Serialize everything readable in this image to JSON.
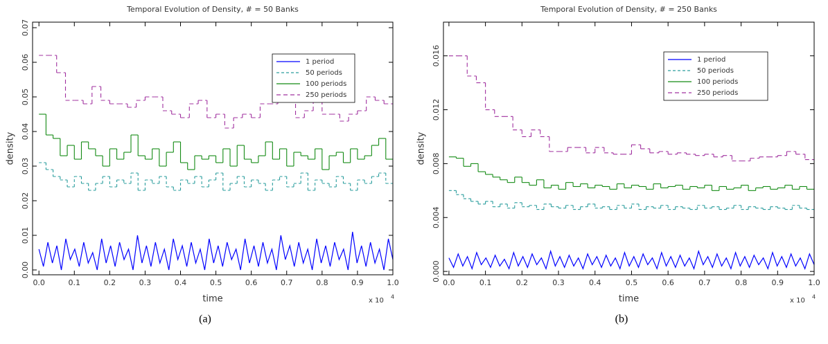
{
  "chart_data": [
    {
      "type": "line",
      "drawstyle": "steps",
      "title": "Temporal Evolution of Density, # = 50 Banks",
      "x_label": "time",
      "y_label": "density",
      "x_multiplier": "x 10",
      "x_multiplier_exp": "4",
      "caption": "(a)",
      "xlim": [
        -0.018,
        1.0
      ],
      "ylim": [
        -0.0014,
        0.0716
      ],
      "xticks": [
        {
          "value": 0,
          "label": "0.0"
        },
        {
          "value": 0.1,
          "label": "0.1"
        },
        {
          "value": 0.2,
          "label": "0.2"
        },
        {
          "value": 0.3,
          "label": "0.3"
        },
        {
          "value": 0.4,
          "label": "0.4"
        },
        {
          "value": 0.5,
          "label": "0.5"
        },
        {
          "value": 0.6,
          "label": "0.6"
        },
        {
          "value": 0.7,
          "label": "0.7"
        },
        {
          "value": 0.8,
          "label": "0.8"
        },
        {
          "value": 0.9,
          "label": "0.9"
        },
        {
          "value": 1,
          "label": "1.0"
        }
      ],
      "yticks": [
        {
          "value": 0,
          "label": "0.00"
        },
        {
          "value": 0.01,
          "label": "0.01"
        },
        {
          "value": 0.02,
          "label": "0.02"
        },
        {
          "value": 0.03,
          "label": "0.03"
        },
        {
          "value": 0.04,
          "label": "0.04"
        },
        {
          "value": 0.05,
          "label": "0.05"
        },
        {
          "value": 0.06,
          "label": "0.06"
        },
        {
          "value": 0.07,
          "label": "0.07"
        }
      ],
      "series": [
        {
          "name": "1 period",
          "color": "#0000ff",
          "dash": "none",
          "values": [
            0.006,
            0.001,
            0.008,
            0.002,
            0.007,
            0.0,
            0.009,
            0.003,
            0.006,
            0.001,
            0.008,
            0.002,
            0.005,
            0.0,
            0.009,
            0.002,
            0.007,
            0.001,
            0.008,
            0.003,
            0.006,
            0.0,
            0.01,
            0.002,
            0.007,
            0.001,
            0.008,
            0.002,
            0.006,
            0.0,
            0.009,
            0.003,
            0.007,
            0.001,
            0.008,
            0.002,
            0.006,
            0.0,
            0.009,
            0.002,
            0.007,
            0.001,
            0.008,
            0.003,
            0.006,
            0.0,
            0.009,
            0.002,
            0.007,
            0.001,
            0.008,
            0.002,
            0.006,
            0.0,
            0.01,
            0.003,
            0.007,
            0.001,
            0.008,
            0.002,
            0.006,
            0.0,
            0.009,
            0.002,
            0.007,
            0.001,
            0.008,
            0.003,
            0.006,
            0.0,
            0.011,
            0.002,
            0.007,
            0.001,
            0.008,
            0.002,
            0.006,
            0.0,
            0.009,
            0.003
          ]
        },
        {
          "name": "50 periods",
          "color": "#2a9d9d",
          "dash": "4,3",
          "values": [
            0.031,
            0.029,
            0.027,
            0.026,
            0.024,
            0.027,
            0.025,
            0.023,
            0.025,
            0.027,
            0.024,
            0.026,
            0.025,
            0.028,
            0.023,
            0.026,
            0.025,
            0.027,
            0.024,
            0.023,
            0.026,
            0.025,
            0.027,
            0.024,
            0.026,
            0.028,
            0.023,
            0.025,
            0.027,
            0.024,
            0.026,
            0.025,
            0.023,
            0.026,
            0.027,
            0.024,
            0.025,
            0.028,
            0.023,
            0.026,
            0.025,
            0.024,
            0.027,
            0.025,
            0.023,
            0.026,
            0.025,
            0.027,
            0.028,
            0.025
          ]
        },
        {
          "name": "100 periods",
          "color": "#138a13",
          "dash": "none",
          "values": [
            0.045,
            0.039,
            0.038,
            0.033,
            0.036,
            0.032,
            0.037,
            0.035,
            0.033,
            0.03,
            0.035,
            0.032,
            0.034,
            0.039,
            0.033,
            0.032,
            0.035,
            0.03,
            0.034,
            0.037,
            0.031,
            0.029,
            0.033,
            0.032,
            0.033,
            0.031,
            0.035,
            0.03,
            0.036,
            0.032,
            0.031,
            0.033,
            0.037,
            0.032,
            0.035,
            0.03,
            0.034,
            0.033,
            0.032,
            0.035,
            0.029,
            0.033,
            0.034,
            0.031,
            0.035,
            0.032,
            0.033,
            0.036,
            0.038,
            0.032
          ]
        },
        {
          "name": "250 periods",
          "color": "#a0309f",
          "dash": "6,4",
          "values": [
            0.062,
            0.062,
            0.057,
            0.049,
            0.049,
            0.048,
            0.053,
            0.049,
            0.048,
            0.048,
            0.047,
            0.049,
            0.05,
            0.05,
            0.046,
            0.045,
            0.044,
            0.048,
            0.049,
            0.044,
            0.045,
            0.041,
            0.044,
            0.045,
            0.044,
            0.048,
            0.048,
            0.049,
            0.05,
            0.044,
            0.046,
            0.049,
            0.045,
            0.045,
            0.043,
            0.045,
            0.046,
            0.05,
            0.049,
            0.048
          ]
        }
      ]
    },
    {
      "type": "line",
      "drawstyle": "steps",
      "title": "Temporal Evolution of Density, # = 250 Banks",
      "x_label": "time",
      "y_label": "density",
      "x_multiplier": "x 10",
      "x_multiplier_exp": "4",
      "caption": "(b)",
      "xlim": [
        -0.015,
        1.0
      ],
      "ylim": [
        -0.00025,
        0.0185
      ],
      "xticks": [
        {
          "value": 0,
          "label": "0.0"
        },
        {
          "value": 0.1,
          "label": "0.1"
        },
        {
          "value": 0.2,
          "label": "0.2"
        },
        {
          "value": 0.3,
          "label": "0.3"
        },
        {
          "value": 0.4,
          "label": "0.4"
        },
        {
          "value": 0.5,
          "label": "0.5"
        },
        {
          "value": 0.6,
          "label": "0.6"
        },
        {
          "value": 0.7,
          "label": "0.7"
        },
        {
          "value": 0.8,
          "label": "0.8"
        },
        {
          "value": 0.9,
          "label": "0.9"
        },
        {
          "value": 1,
          "label": "1.0"
        }
      ],
      "yticks": [
        {
          "value": 0,
          "label": "0.000"
        },
        {
          "value": 0.004,
          "label": "0.004"
        },
        {
          "value": 0.008,
          "label": "0.008"
        },
        {
          "value": 0.012,
          "label": "0.012"
        },
        {
          "value": 0.016,
          "label": "0.016"
        }
      ],
      "series": [
        {
          "name": "1 period",
          "color": "#0000ff",
          "dash": "none",
          "values": [
            0.001,
            0.0003,
            0.0013,
            0.0004,
            0.0011,
            0.0002,
            0.0014,
            0.0005,
            0.001,
            0.0003,
            0.0012,
            0.0004,
            0.0009,
            0.0002,
            0.0014,
            0.0004,
            0.0011,
            0.0003,
            0.0013,
            0.0005,
            0.001,
            0.0002,
            0.0015,
            0.0004,
            0.0011,
            0.0003,
            0.0012,
            0.0004,
            0.001,
            0.0002,
            0.0013,
            0.0005,
            0.0011,
            0.0003,
            0.0012,
            0.0004,
            0.001,
            0.0002,
            0.0014,
            0.0004,
            0.0011,
            0.0003,
            0.0013,
            0.0005,
            0.001,
            0.0002,
            0.0014,
            0.0004,
            0.0011,
            0.0003,
            0.0012,
            0.0004,
            0.001,
            0.0002,
            0.0015,
            0.0005,
            0.0011,
            0.0003,
            0.0013,
            0.0004,
            0.001,
            0.0002,
            0.0014,
            0.0004,
            0.0011,
            0.0003,
            0.0012,
            0.0005,
            0.001,
            0.0002,
            0.0014,
            0.0004,
            0.0011,
            0.0003,
            0.0013,
            0.0004,
            0.001,
            0.0002,
            0.0013,
            0.0005
          ]
        },
        {
          "name": "50 periods",
          "color": "#2a9d9d",
          "dash": "4,3",
          "values": [
            0.006,
            0.0057,
            0.0054,
            0.0052,
            0.005,
            0.0052,
            0.0048,
            0.005,
            0.0047,
            0.0051,
            0.0048,
            0.0049,
            0.0046,
            0.005,
            0.0048,
            0.0047,
            0.0049,
            0.0046,
            0.0048,
            0.005,
            0.0047,
            0.0048,
            0.0046,
            0.0049,
            0.0047,
            0.005,
            0.0046,
            0.0048,
            0.0047,
            0.0049,
            0.0046,
            0.0048,
            0.0047,
            0.0046,
            0.0049,
            0.0047,
            0.0048,
            0.0046,
            0.0047,
            0.0049,
            0.0046,
            0.0048,
            0.0047,
            0.0046,
            0.0048,
            0.0047,
            0.0046,
            0.0049,
            0.0047,
            0.0046
          ]
        },
        {
          "name": "100 periods",
          "color": "#138a13",
          "dash": "none",
          "values": [
            0.0085,
            0.0084,
            0.0078,
            0.008,
            0.0074,
            0.0072,
            0.007,
            0.0068,
            0.0066,
            0.007,
            0.0066,
            0.0064,
            0.0068,
            0.0062,
            0.0064,
            0.0061,
            0.0066,
            0.0063,
            0.0065,
            0.0062,
            0.0064,
            0.0063,
            0.0061,
            0.0065,
            0.0062,
            0.0064,
            0.0063,
            0.0061,
            0.0065,
            0.0062,
            0.0063,
            0.0064,
            0.0061,
            0.0063,
            0.0062,
            0.0064,
            0.006,
            0.0063,
            0.0061,
            0.0062,
            0.0064,
            0.006,
            0.0062,
            0.0063,
            0.0061,
            0.0062,
            0.0064,
            0.0061,
            0.0063,
            0.0061
          ]
        },
        {
          "name": "250 periods",
          "color": "#a0309f",
          "dash": "6,4",
          "values": [
            0.016,
            0.016,
            0.0145,
            0.014,
            0.012,
            0.0115,
            0.0115,
            0.0105,
            0.01,
            0.0105,
            0.01,
            0.0089,
            0.0089,
            0.0092,
            0.0092,
            0.0088,
            0.0092,
            0.0088,
            0.0087,
            0.0087,
            0.0094,
            0.0091,
            0.0088,
            0.0089,
            0.0087,
            0.0088,
            0.0087,
            0.0086,
            0.0087,
            0.0085,
            0.0086,
            0.0082,
            0.0082,
            0.0084,
            0.0085,
            0.0085,
            0.0086,
            0.0089,
            0.0087,
            0.0083
          ]
        }
      ]
    }
  ]
}
